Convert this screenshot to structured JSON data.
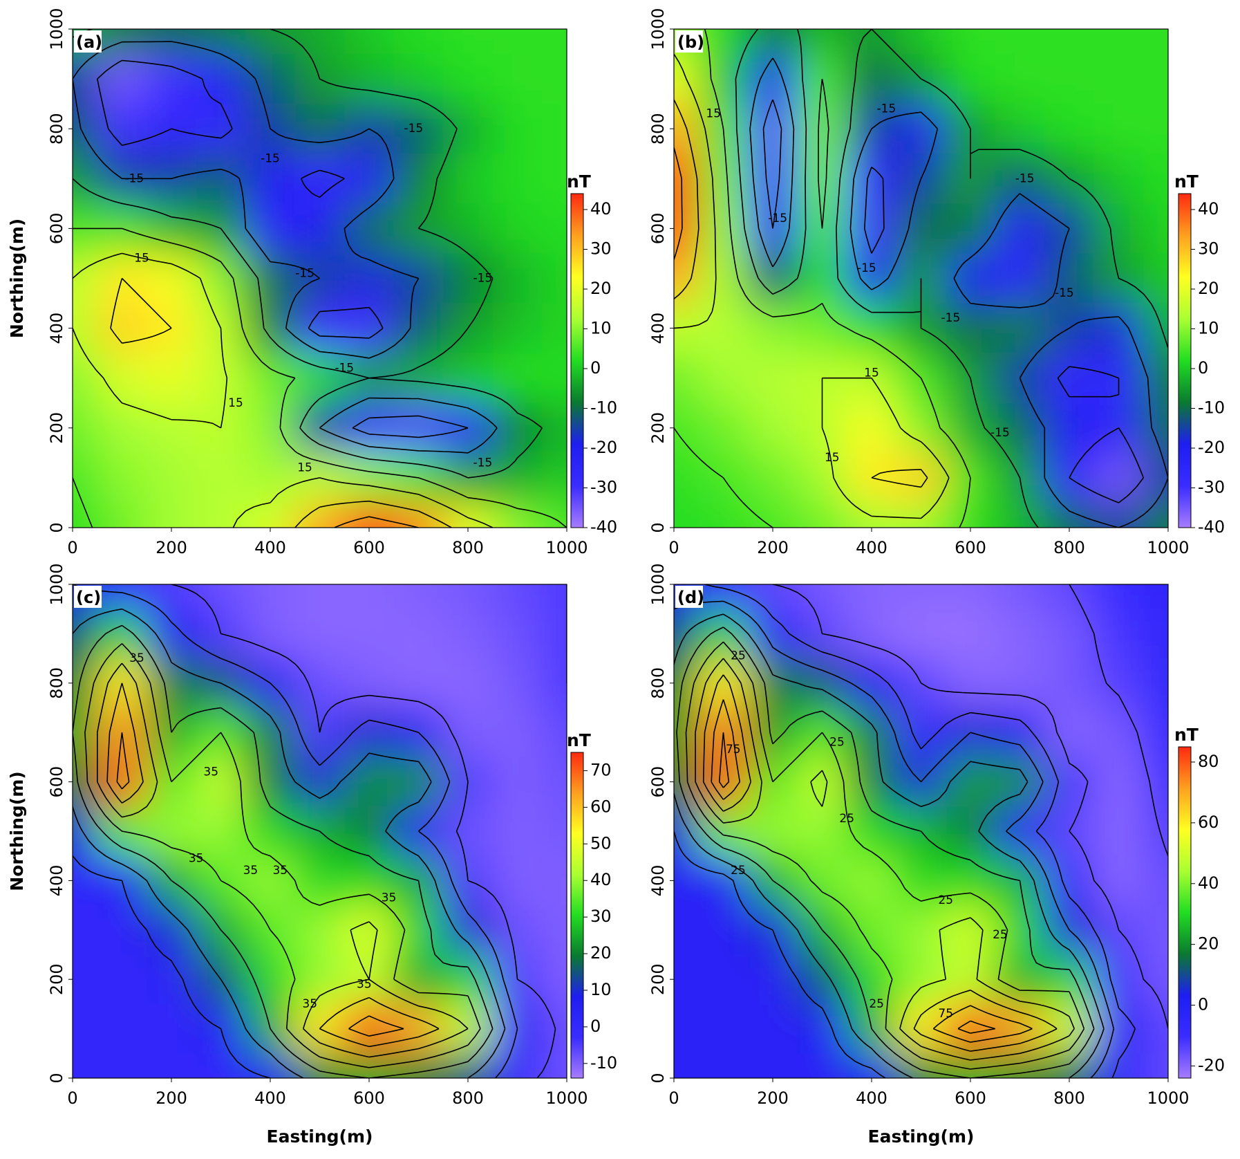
{
  "chart_data": [
    {
      "type": "contour",
      "panel_label": "(a)",
      "y_label": "Northing(m)",
      "colorbar_title": "nT",
      "x": [
        0,
        100,
        200,
        300,
        400,
        500,
        600,
        700,
        800,
        900,
        1000
      ],
      "y": [
        1000,
        900,
        800,
        700,
        600,
        500,
        400,
        300,
        200,
        100,
        0
      ],
      "z": [
        [
          -3,
          -8,
          -10,
          -8,
          -5,
          -3,
          0,
          2,
          3,
          3,
          3
        ],
        [
          -15,
          -35,
          -30,
          -22,
          -12,
          -5,
          -2,
          0,
          2,
          3,
          3
        ],
        [
          -12,
          -30,
          -25,
          -28,
          -15,
          -10,
          -15,
          -12,
          -3,
          2,
          3
        ],
        [
          -5,
          -15,
          -15,
          -12,
          -20,
          -28,
          -22,
          -8,
          0,
          2,
          3
        ],
        [
          5,
          5,
          -2,
          -5,
          -25,
          -20,
          -10,
          -5,
          -2,
          1,
          2
        ],
        [
          15,
          25,
          22,
          10,
          -10,
          -15,
          -18,
          -15,
          -8,
          -2,
          1
        ],
        [
          15,
          28,
          25,
          15,
          -8,
          -30,
          -30,
          -12,
          -5,
          -1,
          1
        ],
        [
          10,
          18,
          20,
          16,
          8,
          2,
          -5,
          -3,
          0,
          2,
          2
        ],
        [
          8,
          12,
          14,
          15,
          10,
          -15,
          -30,
          -32,
          -25,
          -8,
          -2
        ],
        [
          5,
          10,
          12,
          14,
          12,
          15,
          10,
          5,
          -5,
          -3,
          0
        ],
        [
          3,
          8,
          12,
          14,
          18,
          32,
          42,
          35,
          20,
          10,
          5
        ]
      ],
      "levels": [
        -35,
        -25,
        -15,
        -5,
        5,
        15,
        25,
        35
      ],
      "contour_labels": [
        -15,
        -15,
        -15,
        -15,
        -15,
        -15,
        -15,
        15,
        15,
        15
      ],
      "xlim": [
        0,
        1000
      ],
      "ylim": [
        0,
        1000
      ],
      "xticks": [
        0,
        200,
        400,
        600,
        800,
        1000
      ],
      "yticks": [
        0,
        200,
        400,
        600,
        800,
        1000
      ],
      "clim": [
        -40,
        44
      ],
      "cticks": [
        -40,
        -30,
        -20,
        -10,
        0,
        10,
        20,
        30,
        40
      ],
      "colorscale": [
        "#a67cff",
        "#3a2cff",
        "#1e1ef0",
        "#0a7a30",
        "#22dd22",
        "#aaff33",
        "#ffff22",
        "#ffa020",
        "#ff2a10"
      ]
    },
    {
      "type": "contour",
      "panel_label": "(b)",
      "colorbar_title": "nT",
      "x": [
        0,
        100,
        200,
        300,
        400,
        500,
        600,
        700,
        800,
        900,
        1000
      ],
      "y": [
        1000,
        900,
        800,
        700,
        600,
        500,
        400,
        300,
        200,
        100,
        0
      ],
      "z": [
        [
          10,
          2,
          -8,
          -2,
          -5,
          0,
          3,
          3,
          3,
          3,
          3
        ],
        [
          20,
          0,
          -20,
          5,
          -10,
          -5,
          2,
          3,
          3,
          3,
          3
        ],
        [
          32,
          5,
          -32,
          8,
          -15,
          -20,
          -5,
          0,
          2,
          3,
          3
        ],
        [
          40,
          8,
          -30,
          8,
          -28,
          -15,
          -5,
          -12,
          -5,
          0,
          2
        ],
        [
          40,
          10,
          -25,
          5,
          -30,
          -10,
          -8,
          -22,
          -15,
          -3,
          1
        ],
        [
          32,
          12,
          -12,
          2,
          -20,
          -5,
          -20,
          -25,
          -12,
          -5,
          0
        ],
        [
          15,
          14,
          10,
          8,
          2,
          -5,
          -10,
          -8,
          -15,
          -18,
          -3
        ],
        [
          8,
          12,
          14,
          15,
          15,
          5,
          -5,
          -15,
          -28,
          -25,
          -8
        ],
        [
          5,
          8,
          12,
          15,
          22,
          10,
          -3,
          -10,
          -20,
          -25,
          -10
        ],
        [
          3,
          5,
          8,
          12,
          25,
          28,
          5,
          -5,
          -25,
          -35,
          -15
        ],
        [
          2,
          3,
          5,
          8,
          12,
          12,
          3,
          -2,
          -10,
          -15,
          -8
        ]
      ],
      "levels": [
        -35,
        -25,
        -15,
        -5,
        5,
        15,
        25,
        35
      ],
      "contour_labels": [
        15,
        -15,
        -15,
        -15,
        -15,
        -15,
        -15,
        -15,
        15,
        15
      ],
      "xlim": [
        0,
        1000
      ],
      "ylim": [
        0,
        1000
      ],
      "xticks": [
        0,
        200,
        400,
        600,
        800,
        1000
      ],
      "yticks": [
        0,
        200,
        400,
        600,
        800,
        1000
      ],
      "clim": [
        -40,
        44
      ],
      "cticks": [
        -40,
        -30,
        -20,
        -10,
        0,
        10,
        20,
        30,
        40
      ],
      "colorscale": [
        "#a67cff",
        "#3a2cff",
        "#1e1ef0",
        "#0a7a30",
        "#22dd22",
        "#aaff33",
        "#ffff22",
        "#ffa020",
        "#ff2a10"
      ]
    },
    {
      "type": "contour",
      "panel_label": "(c)",
      "x_label": "Easting(m)",
      "y_label": "Northing(m)",
      "colorbar_title": "nT",
      "x": [
        0,
        100,
        200,
        300,
        400,
        500,
        600,
        700,
        800,
        900,
        1000
      ],
      "y": [
        1000,
        900,
        800,
        700,
        600,
        500,
        400,
        300,
        200,
        100,
        0
      ],
      "z": [
        [
          5,
          0,
          -5,
          -8,
          -10,
          -11,
          -11,
          -10,
          -9,
          -7,
          -5
        ],
        [
          15,
          30,
          8,
          -5,
          -10,
          -11,
          -11,
          -11,
          -10,
          -8,
          -5
        ],
        [
          20,
          55,
          20,
          15,
          5,
          -8,
          -10,
          -11,
          -11,
          -9,
          -5
        ],
        [
          25,
          65,
          25,
          35,
          20,
          -5,
          10,
          5,
          -10,
          -10,
          -7
        ],
        [
          20,
          70,
          35,
          45,
          20,
          10,
          22,
          22,
          -5,
          -10,
          -8
        ],
        [
          10,
          35,
          40,
          40,
          30,
          25,
          20,
          5,
          -8,
          -10,
          -9
        ],
        [
          0,
          5,
          25,
          35,
          40,
          30,
          30,
          25,
          -5,
          -10,
          -10
        ],
        [
          0,
          0,
          10,
          25,
          35,
          40,
          48,
          30,
          10,
          -8,
          -10
        ],
        [
          0,
          0,
          2,
          15,
          30,
          40,
          45,
          25,
          30,
          -5,
          -10
        ],
        [
          0,
          0,
          0,
          5,
          25,
          55,
          72,
          62,
          45,
          5,
          -8
        ],
        [
          0,
          0,
          0,
          0,
          5,
          20,
          25,
          20,
          15,
          -3,
          -8
        ]
      ],
      "levels": [
        -5,
        5,
        15,
        25,
        35,
        45,
        55,
        65
      ],
      "contour_labels": [
        35,
        35,
        35,
        35,
        35,
        35,
        35,
        35
      ],
      "xlim": [
        0,
        1000
      ],
      "ylim": [
        0,
        1000
      ],
      "xticks": [
        0,
        200,
        400,
        600,
        800,
        1000
      ],
      "yticks": [
        0,
        200,
        400,
        600,
        800,
        1000
      ],
      "clim": [
        -14,
        75
      ],
      "cticks": [
        -10,
        0,
        10,
        20,
        30,
        40,
        50,
        60,
        70
      ],
      "colorscale": [
        "#a67cff",
        "#3a2cff",
        "#1e1ef0",
        "#0a7a30",
        "#22dd22",
        "#aaff33",
        "#ffff22",
        "#ffa020",
        "#ff2a10"
      ]
    },
    {
      "type": "contour",
      "panel_label": "(d)",
      "x_label": "Easting(m)",
      "colorbar_title": "nT",
      "x": [
        0,
        100,
        200,
        300,
        400,
        500,
        600,
        700,
        800,
        900,
        1000
      ],
      "y": [
        1000,
        900,
        800,
        700,
        600,
        500,
        400,
        300,
        200,
        100,
        0
      ],
      "z": [
        [
          0,
          -8,
          -15,
          -18,
          -20,
          -20,
          -20,
          -18,
          -15,
          -10,
          -5
        ],
        [
          10,
          30,
          0,
          -15,
          -20,
          -22,
          -22,
          -20,
          -18,
          -12,
          -6
        ],
        [
          18,
          60,
          18,
          12,
          0,
          -15,
          -20,
          -20,
          -18,
          -14,
          -7
        ],
        [
          22,
          75,
          22,
          35,
          18,
          -10,
          5,
          0,
          -20,
          -18,
          -10
        ],
        [
          18,
          80,
          35,
          48,
          18,
          5,
          22,
          20,
          -12,
          -20,
          -12
        ],
        [
          5,
          38,
          42,
          42,
          30,
          25,
          18,
          0,
          -15,
          -20,
          -14
        ],
        [
          -3,
          0,
          25,
          38,
          42,
          30,
          30,
          25,
          -10,
          -20,
          -16
        ],
        [
          -3,
          -3,
          5,
          25,
          38,
          42,
          50,
          30,
          5,
          -15,
          -18
        ],
        [
          -3,
          -3,
          -2,
          12,
          30,
          42,
          48,
          25,
          30,
          -12,
          -18
        ],
        [
          -3,
          -3,
          -3,
          0,
          25,
          60,
          80,
          70,
          50,
          0,
          -15
        ],
        [
          -3,
          -3,
          -3,
          -3,
          0,
          18,
          25,
          20,
          15,
          -8,
          -15
        ]
      ],
      "levels": [
        -15,
        -5,
        5,
        15,
        25,
        35,
        45,
        55,
        65,
        75
      ],
      "contour_labels": [
        25,
        75,
        25,
        25,
        25,
        25,
        25,
        25,
        75
      ],
      "xlim": [
        0,
        1000
      ],
      "ylim": [
        0,
        1000
      ],
      "xticks": [
        0,
        200,
        400,
        600,
        800,
        1000
      ],
      "yticks": [
        0,
        200,
        400,
        600,
        800,
        1000
      ],
      "clim": [
        -24,
        85
      ],
      "cticks": [
        -20,
        0,
        20,
        40,
        60,
        80
      ],
      "colorscale": [
        "#a67cff",
        "#3a2cff",
        "#1e1ef0",
        "#0a7a30",
        "#22dd22",
        "#aaff33",
        "#ffff22",
        "#ffa020",
        "#ff2a10"
      ]
    }
  ]
}
